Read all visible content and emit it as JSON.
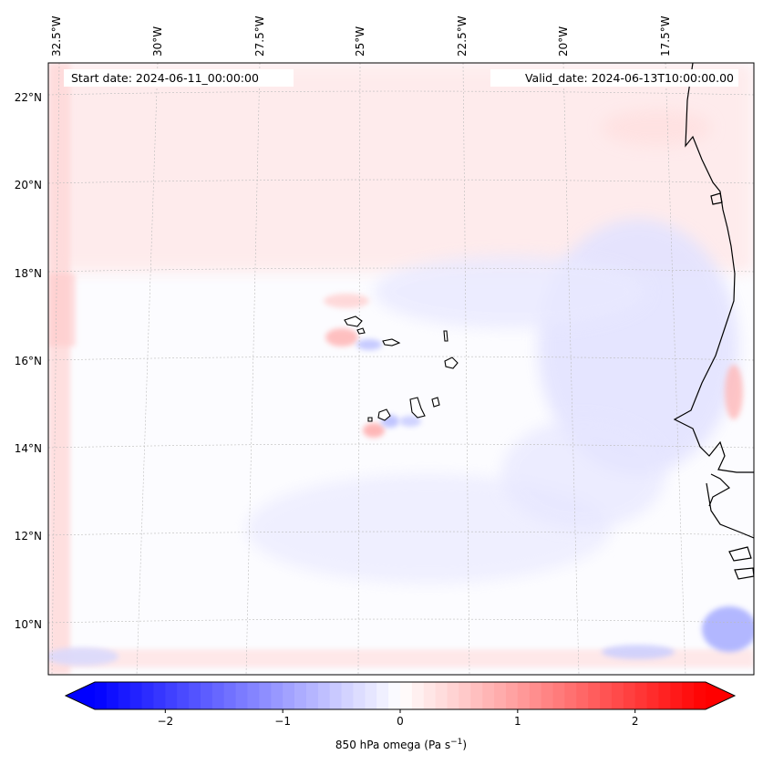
{
  "header": {
    "start_date": "Start date: 2024-06-11_00:00:00",
    "valid_date": "Valid_date: 2024-06-13T10:00:00.00"
  },
  "map": {
    "lon_labels": [
      "32.5°W",
      "30°W",
      "27.5°W",
      "25°W",
      "22.5°W",
      "20°W",
      "17.5°W"
    ],
    "lat_labels": [
      "22°N",
      "20°N",
      "18°N",
      "16°N",
      "14°N",
      "12°N",
      "10°N"
    ],
    "islands": [
      "Santo Antão",
      "São Vicente",
      "São Nicolau",
      "Sal",
      "Boa Vista",
      "Maio",
      "Santiago",
      "Fogo",
      "Brava"
    ]
  },
  "colorbar": {
    "label_prefix": "850 hPa omega (Pa s",
    "label_exp": "−1",
    "label_suffix": ")",
    "ticks": [
      "−2",
      "−1",
      "0",
      "1",
      "2"
    ],
    "colors": {
      "negative": "#0000ff",
      "zero": "#ffffff",
      "positive": "#ff0000"
    },
    "range": [
      -2.6,
      2.6
    ]
  }
}
